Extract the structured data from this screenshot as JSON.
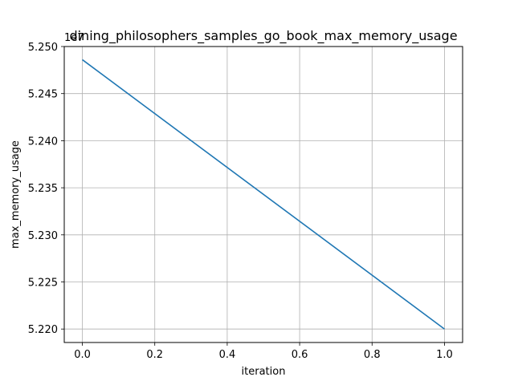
{
  "chart_data": {
    "type": "line",
    "title": "dining_philosophers_samples_go_book_max_memory_usage",
    "xlabel": "iteration",
    "ylabel": "max_memory_usage",
    "y_offset_label": "1e7",
    "x": [
      0.0,
      1.0
    ],
    "series": [
      {
        "values": [
          52486000,
          52200000
        ],
        "color": "#1f77b4"
      }
    ],
    "xlim": [
      -0.05,
      1.05
    ],
    "ylim": [
      52185700,
      52500000
    ],
    "x_ticks": [
      0.0,
      0.2,
      0.4,
      0.6,
      0.8,
      1.0
    ],
    "x_tick_labels": [
      "0.0",
      "0.2",
      "0.4",
      "0.6",
      "0.8",
      "1.0"
    ],
    "y_ticks": [
      52200000,
      52250000,
      52300000,
      52350000,
      52400000,
      52450000,
      52500000
    ],
    "y_tick_labels": [
      "5.220",
      "5.225",
      "5.230",
      "5.235",
      "5.240",
      "5.245",
      "5.250"
    ],
    "grid": true
  }
}
